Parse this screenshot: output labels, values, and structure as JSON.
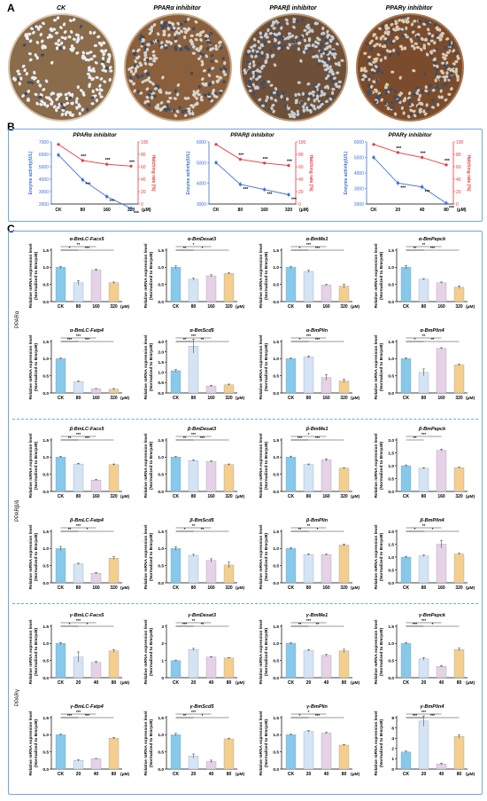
{
  "panels": {
    "a": "A",
    "b": "B",
    "c": "C"
  },
  "dishes": [
    {
      "title": "CK",
      "shell": "#d9c7b0",
      "egg": "#e8eef4",
      "bg": "#8a6b4a",
      "dense": 0.55
    },
    {
      "title": "PPARα inhibitor",
      "shell": "#c7a98a",
      "egg": "#d8d4cc",
      "bg": "#8a5f3c",
      "dense": 0.75
    },
    {
      "title": "PPARβ inhibitor",
      "shell": "#b99a7a",
      "egg": "#c6ccd3",
      "bg": "#6e5038",
      "dense": 0.8
    },
    {
      "title": "PPARγ inhibitor",
      "shell": "#a97a54",
      "egg": "#d9cab6",
      "bg": "#7a4c2c",
      "dense": 0.8
    }
  ],
  "panelB": {
    "left_axis_label": "Enzyme activity(U/L)",
    "right_axis_label": "Hatching rate (%)",
    "unit": "(μM)",
    "blue": "#3d6fd6",
    "red": "#e8383b",
    "charts": [
      {
        "title": "PPARα inhibitor",
        "categories": [
          "CK",
          "80",
          "160",
          "320"
        ],
        "left_ticks": [
          "2000",
          "3000",
          "4000",
          "5000",
          "6000",
          "7000"
        ],
        "right_ticks": [
          "0",
          "20",
          "40",
          "60",
          "80",
          "100"
        ],
        "enzyme": [
          5950,
          3950,
          2600,
          1650
        ],
        "hatch": [
          96,
          70,
          64,
          61
        ],
        "enzyme_sig": [
          "",
          "***",
          "***",
          "***"
        ],
        "hatch_sig": [
          "",
          "***",
          "***",
          "***"
        ]
      },
      {
        "title": "PPARβ inhibitor",
        "categories": [
          "CK",
          "80",
          "160",
          "320"
        ],
        "left_ticks": [
          "3000",
          "4000",
          "5000",
          "6000"
        ],
        "right_ticks": [
          "0",
          "20",
          "40",
          "60",
          "80",
          "100"
        ],
        "enzyme": [
          5000,
          3950,
          3700,
          3450
        ],
        "hatch": [
          96,
          72,
          66,
          62
        ],
        "enzyme_sig": [
          "",
          "***",
          "***",
          "***"
        ],
        "hatch_sig": [
          "",
          "***",
          "***",
          "***"
        ]
      },
      {
        "title": "PPARγ inhibitor",
        "categories": [
          "CK",
          "20",
          "40",
          "80"
        ],
        "left_ticks": [
          "2000",
          "3000",
          "4000",
          "5000",
          "6000"
        ],
        "right_ticks": [
          "0",
          "20",
          "40",
          "60",
          "80",
          "100"
        ],
        "enzyme": [
          5000,
          3350,
          3100,
          2050
        ],
        "hatch": [
          96,
          83,
          75,
          63
        ],
        "enzyme_sig": [
          "",
          "***",
          "***",
          "***"
        ],
        "hatch_sig": [
          "",
          "***",
          "***",
          "***"
        ]
      }
    ]
  },
  "panelC": {
    "ylabel1": "Relative mRNA expression level",
    "ylabel2": "(Normalized to Bmrp49)",
    "unit": "(μM)",
    "colors": [
      "#86c9ea",
      "#d4e4f5",
      "#e6d1e6",
      "#f4ce8c"
    ],
    "row_labels": [
      "PPARα",
      "PPARβ/δ",
      "PPARγ"
    ],
    "charts": [
      {
        "title": "α-BmLC-Facs5",
        "cats": [
          "CK",
          "80",
          "160",
          "320"
        ],
        "ticks": [
          "0.0",
          "0.5",
          "1.0",
          "1.5"
        ],
        "ymax": 1.5,
        "values": [
          1.0,
          0.55,
          0.92,
          0.55
        ],
        "err": [
          0.03,
          0.06,
          0.03,
          0.02
        ],
        "sig": [
          "*",
          "**",
          "***"
        ]
      },
      {
        "title": "α-BmDesat3",
        "cats": [
          "CK",
          "80",
          "160",
          "320"
        ],
        "ticks": [
          "0.0",
          "0.5",
          "1.0",
          "1.5"
        ],
        "ymax": 1.5,
        "values": [
          1.0,
          0.65,
          0.75,
          0.82
        ],
        "err": [
          0.04,
          0.03,
          0.03,
          0.02
        ],
        "sig": [
          "**",
          "*",
          "*"
        ]
      },
      {
        "title": "α-BmMe1",
        "cats": [
          "CK",
          "80",
          "160",
          "320"
        ],
        "ticks": [
          "0.0",
          "0.5",
          "1.0",
          "1.5"
        ],
        "ymax": 1.5,
        "values": [
          1.0,
          0.88,
          0.48,
          0.45
        ],
        "err": [
          0.03,
          0.03,
          0.02,
          0.06
        ],
        "sig": [
          "*",
          "***",
          "***"
        ]
      },
      {
        "title": "α-BmPepck",
        "cats": [
          "CK",
          "80",
          "160",
          "320"
        ],
        "ticks": [
          "0.0",
          "0.5",
          "1.0",
          "1.5"
        ],
        "ymax": 1.5,
        "values": [
          1.0,
          0.65,
          0.55,
          0.42
        ],
        "err": [
          0.05,
          0.02,
          0.02,
          0.04
        ],
        "sig": [
          "**",
          "**",
          "***"
        ]
      },
      {
        "title": "α-BmLC-Fatp4",
        "cats": [
          "CK",
          "80",
          "160",
          "320"
        ],
        "ticks": [
          "0.0",
          "0.5",
          "1.0",
          "1.5"
        ],
        "ymax": 1.5,
        "values": [
          1.0,
          0.33,
          0.12,
          0.11
        ],
        "err": [
          0.02,
          0.02,
          0.01,
          0.02
        ],
        "sig": [
          "***",
          "***",
          "***"
        ]
      },
      {
        "title": "α-BmScd5",
        "cats": [
          "CK",
          "80",
          "160",
          "320"
        ],
        "ticks": [
          "0.0",
          "0.5",
          "1.0",
          "1.5",
          "2.0",
          "4.0"
        ],
        "ymax": 2.2,
        "values": [
          0.95,
          2.0,
          0.3,
          0.35
        ],
        "err": [
          0.05,
          0.3,
          0.03,
          0.03
        ],
        "sig": [
          "**",
          "***",
          "**"
        ]
      },
      {
        "title": "α-BmPlin",
        "cats": [
          "CK",
          "80",
          "160",
          "320"
        ],
        "ticks": [
          "0.0",
          "0.5",
          "1.0",
          "1.5"
        ],
        "ymax": 1.5,
        "values": [
          1.0,
          1.05,
          0.45,
          0.35
        ],
        "err": [
          0.02,
          0.03,
          0.08,
          0.05
        ],
        "sig": [
          "*",
          "***",
          "***"
        ]
      },
      {
        "title": "α-BmPlin4",
        "cats": [
          "CK",
          "80",
          "160",
          "320"
        ],
        "ticks": [
          "0.0",
          "0.5",
          "1.0",
          "1.5"
        ],
        "ymax": 1.5,
        "values": [
          1.0,
          0.6,
          1.3,
          0.82
        ],
        "err": [
          0.03,
          0.1,
          0.02,
          0.02
        ],
        "sig": [
          "*",
          "**",
          "**"
        ]
      },
      {
        "title": "β-BmLC-Facs5",
        "cats": [
          "CK",
          "80",
          "160",
          "320"
        ],
        "ticks": [
          "0.0",
          "0.5",
          "1.0",
          "1.5"
        ],
        "ymax": 1.5,
        "values": [
          1.0,
          0.8,
          0.33,
          0.78
        ],
        "err": [
          0.02,
          0.02,
          0.02,
          0.02
        ],
        "sig": [
          "**",
          "***",
          "***"
        ]
      },
      {
        "title": "β-BmDesat3",
        "cats": [
          "CK",
          "80",
          "160",
          "320"
        ],
        "ticks": [
          "0.0",
          "0.5",
          "1.0",
          "1.5"
        ],
        "ymax": 1.5,
        "values": [
          1.0,
          0.9,
          0.87,
          0.78
        ],
        "err": [
          0.02,
          0.02,
          0.02,
          0.02
        ],
        "sig": [
          "**",
          "***",
          "***"
        ]
      },
      {
        "title": "β-BmMe1",
        "cats": [
          "CK",
          "80",
          "160",
          "320"
        ],
        "ticks": [
          "0.0",
          "0.5",
          "1.0",
          "1.5"
        ],
        "ymax": 1.5,
        "values": [
          1.0,
          0.78,
          0.92,
          0.68
        ],
        "err": [
          0.03,
          0.02,
          0.03,
          0.01
        ],
        "sig": [
          "***",
          "*",
          "***"
        ]
      },
      {
        "title": "β-BmPepck",
        "cats": [
          "CK",
          "80",
          "160",
          "320"
        ],
        "ticks": [
          "0.0",
          "0.5",
          "1.0",
          "1.5",
          "2.0"
        ],
        "ymax": 2.0,
        "values": [
          1.0,
          0.9,
          1.6,
          0.92
        ],
        "err": [
          0.03,
          0.02,
          0.04,
          0.02
        ],
        "sig": [
          "**",
          "***",
          ""
        ]
      },
      {
        "title": "β-BmLC-Fatp4",
        "cats": [
          "CK",
          "80",
          "160",
          "320"
        ],
        "ticks": [
          "0.0",
          "0.5",
          "1.0",
          "1.5"
        ],
        "ymax": 1.5,
        "values": [
          1.0,
          0.55,
          0.28,
          0.72
        ],
        "err": [
          0.06,
          0.02,
          0.02,
          0.04
        ],
        "sig": [
          "**",
          "***",
          "*"
        ]
      },
      {
        "title": "β-BmScd5",
        "cats": [
          "CK",
          "80",
          "160",
          "320"
        ],
        "ticks": [
          "0.0",
          "0.5",
          "1.0",
          "1.5"
        ],
        "ymax": 1.5,
        "values": [
          1.0,
          0.8,
          0.65,
          0.52
        ],
        "err": [
          0.05,
          0.03,
          0.05,
          0.08
        ],
        "sig": [
          "*",
          "**",
          "**"
        ]
      },
      {
        "title": "β-BmPlin",
        "cats": [
          "CK",
          "80",
          "160",
          "320"
        ],
        "ticks": [
          "0.0",
          "0.5",
          "1.0",
          "1.5"
        ],
        "ymax": 1.5,
        "values": [
          1.0,
          0.82,
          0.82,
          1.1
        ],
        "err": [
          0.03,
          0.02,
          0.02,
          0.03
        ],
        "sig": [
          "**",
          "**",
          "*"
        ]
      },
      {
        "title": "β-BmPlin4",
        "cats": [
          "CK",
          "80",
          "160",
          "320"
        ],
        "ticks": [
          "0.0",
          "0.5",
          "1.0",
          "1.5",
          "2.0"
        ],
        "ymax": 2.0,
        "values": [
          1.0,
          1.05,
          1.5,
          1.12
        ],
        "err": [
          0.03,
          0.03,
          0.15,
          0.03
        ],
        "sig": [
          "*",
          "**",
          "*"
        ]
      },
      {
        "title": "γ-BmLC-Facs5",
        "cats": [
          "CK",
          "20",
          "40",
          "80"
        ],
        "ticks": [
          "0.0",
          "0.5",
          "1.0",
          "1.5"
        ],
        "ymax": 1.5,
        "values": [
          1.0,
          0.6,
          0.45,
          0.78
        ],
        "err": [
          0.03,
          0.15,
          0.03,
          0.04
        ],
        "sig": [
          "*",
          "***",
          "*"
        ]
      },
      {
        "title": "γ-BmDesat3",
        "cats": [
          "CK",
          "20",
          "40",
          "80"
        ],
        "ticks": [
          "0",
          "1",
          "2",
          "3"
        ],
        "ymax": 3,
        "values": [
          1.0,
          1.65,
          1.2,
          1.15
        ],
        "err": [
          0.03,
          0.06,
          0.03,
          0.02
        ],
        "sig": [
          "***",
          "**",
          "**"
        ]
      },
      {
        "title": "γ-BmMe1",
        "cats": [
          "CK",
          "20",
          "40",
          "80"
        ],
        "ticks": [
          "0.0",
          "0.5",
          "1.0",
          "1.5"
        ],
        "ymax": 1.5,
        "values": [
          1.0,
          0.8,
          0.65,
          0.78
        ],
        "err": [
          0.02,
          0.02,
          0.03,
          0.05
        ],
        "sig": [
          "**",
          "***",
          "**"
        ]
      },
      {
        "title": "γ-BmPepck",
        "cats": [
          "CK",
          "20",
          "40",
          "80"
        ],
        "ticks": [
          "0.0",
          "0.5",
          "1.0",
          "1.5"
        ],
        "ymax": 1.5,
        "values": [
          1.0,
          0.55,
          0.33,
          0.82
        ],
        "err": [
          0.02,
          0.04,
          0.02,
          0.04
        ],
        "sig": [
          "***",
          "***",
          "*"
        ]
      },
      {
        "title": "γ-BmLC-Fatp4",
        "cats": [
          "CK",
          "20",
          "40",
          "80"
        ],
        "ticks": [
          "0.0",
          "0.5",
          "1.0",
          "1.5"
        ],
        "ymax": 1.5,
        "values": [
          1.0,
          0.25,
          0.3,
          0.9
        ],
        "err": [
          0.02,
          0.02,
          0.01,
          0.02
        ],
        "sig": [
          "***",
          "***",
          "***"
        ]
      },
      {
        "title": "γ-BmScd5",
        "cats": [
          "CK",
          "20",
          "40",
          "80"
        ],
        "ticks": [
          "0.0",
          "0.5",
          "1.0",
          "1.5"
        ],
        "ymax": 1.5,
        "values": [
          1.0,
          0.38,
          0.22,
          0.88
        ],
        "err": [
          0.04,
          0.06,
          0.04,
          0.02
        ],
        "sig": [
          "**",
          "***",
          "*"
        ]
      },
      {
        "title": "γ-BmPlin",
        "cats": [
          "CK",
          "20",
          "40",
          "80"
        ],
        "ticks": [
          "0.0",
          "0.5",
          "1.0",
          "1.5"
        ],
        "ymax": 1.5,
        "values": [
          1.0,
          1.1,
          1.05,
          0.7
        ],
        "err": [
          0.02,
          0.02,
          0.02,
          0.02
        ],
        "sig": [
          "*",
          "*",
          "***"
        ]
      },
      {
        "title": "γ-BmPlin4",
        "cats": [
          "CK",
          "20",
          "40",
          "80"
        ],
        "ticks": [
          "0",
          "1",
          "2",
          "4",
          "6",
          "8"
        ],
        "ymax": 3,
        "values": [
          1.0,
          2.8,
          0.3,
          1.9
        ],
        "err": [
          0.05,
          0.3,
          0.05,
          0.1
        ],
        "sig": [
          "***",
          "***",
          "***"
        ]
      }
    ]
  }
}
